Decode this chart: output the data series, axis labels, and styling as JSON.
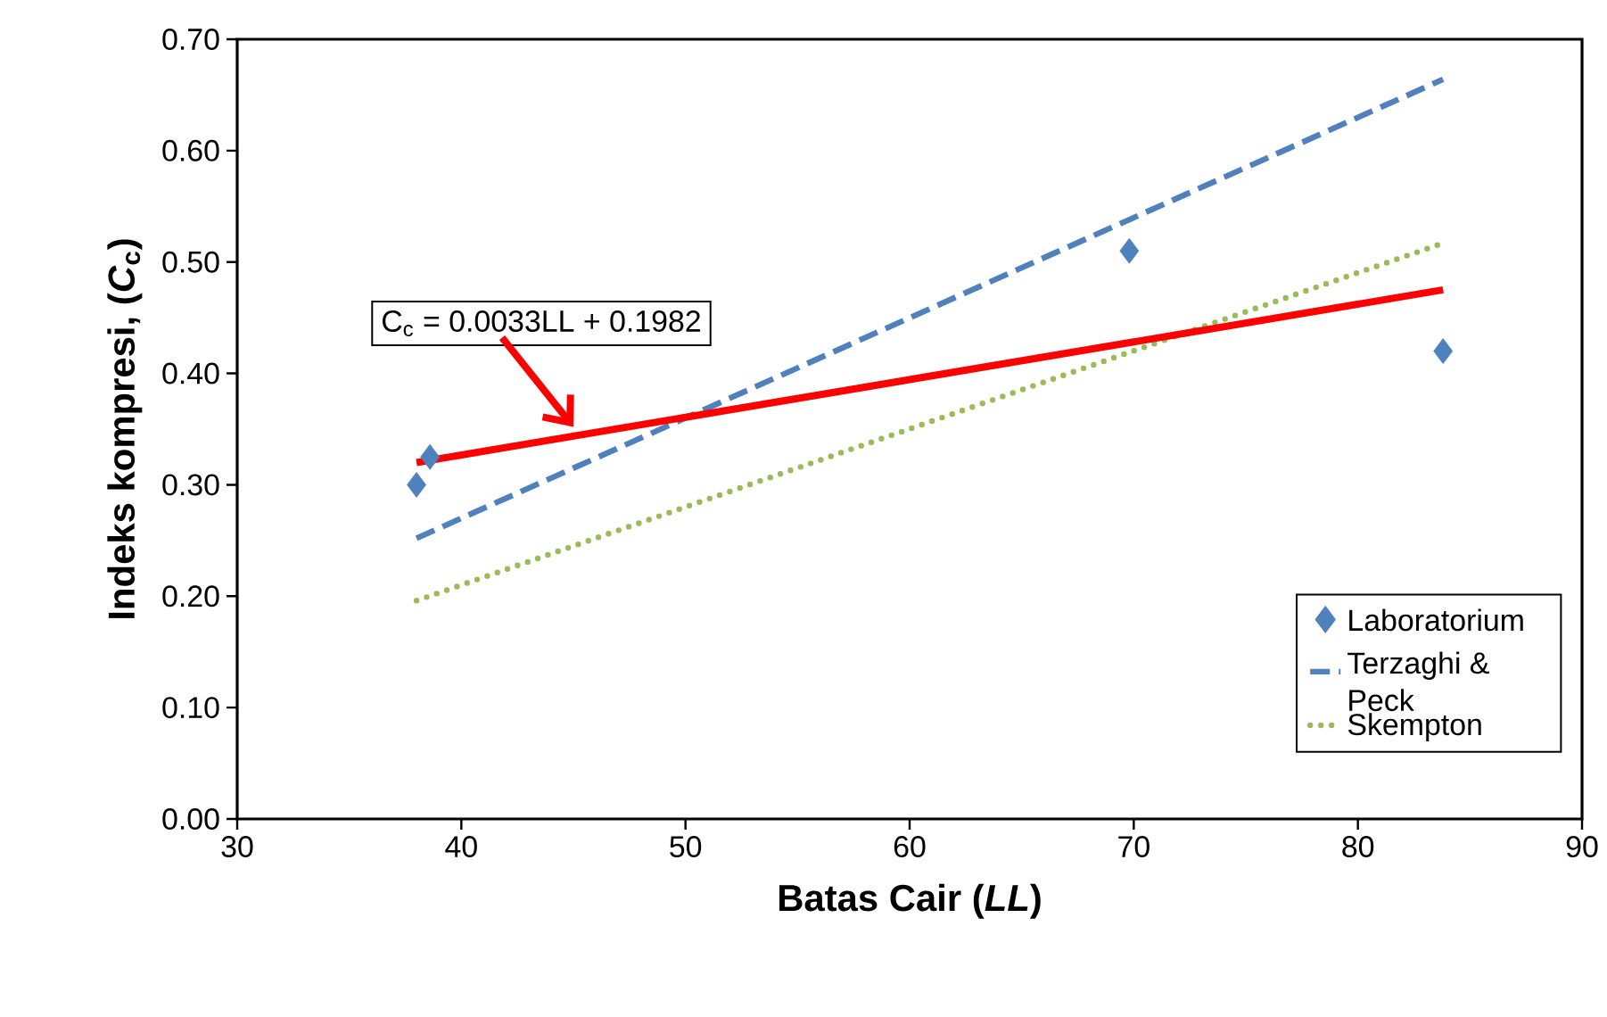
{
  "chart_data": {
    "type": "scatter",
    "xlabel": "Batas Cair (*LL*)",
    "ylabel": "Indeks kompresi, (*C*$_{c}$)",
    "xlim": [
      30,
      90
    ],
    "xticks": [
      30,
      40,
      50,
      60,
      70,
      80,
      90
    ],
    "ylim": [
      0,
      0.7
    ],
    "yticks": [
      {
        "value": 0,
        "label": "0.00"
      },
      {
        "value": 0.1,
        "label": "0.10"
      },
      {
        "value": 0.2,
        "label": "0.20"
      },
      {
        "value": 0.3,
        "label": "0.30"
      },
      {
        "value": 0.4,
        "label": "0.40"
      },
      {
        "value": 0.5,
        "label": "0.50"
      },
      {
        "value": 0.6,
        "label": "0.60"
      },
      {
        "value": 0.7,
        "label": "0.70"
      }
    ],
    "grid": false,
    "legend": "right",
    "series": [
      {
        "name": "Laboratorium",
        "type": "scatter",
        "marker": "diamond",
        "color": "#4f81bd",
        "x": [
          38,
          38.6,
          69.8,
          83.8
        ],
        "values": [
          0.3,
          0.325,
          0.51,
          0.42
        ]
      },
      {
        "name": "Terzaghi & Peck",
        "type": "line",
        "marker": "none",
        "line_style": "dashed",
        "color": "#4f81bd",
        "x": [
          38,
          83.8
        ],
        "values": [
          0.252,
          0.664
        ]
      },
      {
        "name": "Skempton",
        "type": "line",
        "marker": "none",
        "line_style": "dotted",
        "color": "#9bbb59",
        "x": [
          38,
          83.8
        ],
        "values": [
          0.196,
          0.517
        ]
      },
      {
        "type": "line",
        "marker": "none",
        "line_style": "solid",
        "color": "#ff0000",
        "x": [
          38,
          83.8
        ],
        "values": [
          0.32,
          0.475
        ]
      }
    ],
    "annotations": [
      {
        "text": "C$_{c}$ = 0.0033LL + 0.1982",
        "x": 45,
        "y": 0.352
      }
    ]
  }
}
